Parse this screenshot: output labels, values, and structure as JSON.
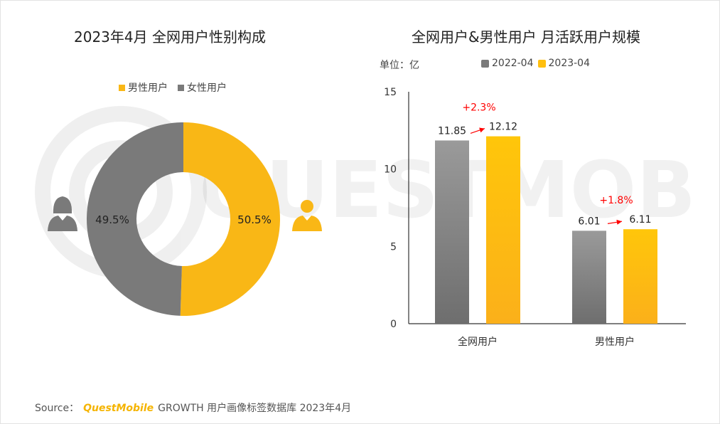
{
  "left_title": "2023年4月 全网用户性别构成",
  "right_title": "全网用户&男性用户 月活跃用户规模",
  "watermark_text": "QUESTMOBILE",
  "colors": {
    "male": "#f9b716",
    "female": "#7a7a7a",
    "bar_old": "#8a8a8a",
    "bar_new": "#ffbf0f",
    "change": "#ff0000"
  },
  "unit_label": "单位：亿",
  "source": {
    "prefix": "Source：",
    "brand": "QuestMobile",
    "text": "GROWTH 用户画像标签数据库 2023年4月"
  },
  "chart_data": [
    {
      "type": "pie",
      "variant": "donut",
      "title": "2023年4月 全网用户性别构成",
      "legend_position": "top",
      "slices": [
        {
          "name": "男性用户",
          "value": 50.5,
          "label": "50.5%",
          "color": "#f9b716",
          "icon": "male-user-icon"
        },
        {
          "name": "女性用户",
          "value": 49.5,
          "label": "49.5%",
          "color": "#7a7a7a",
          "icon": "female-user-icon"
        }
      ]
    },
    {
      "type": "bar",
      "title": "全网用户&男性用户 月活跃用户规模",
      "unit": "单位：亿",
      "categories": [
        "全网用户",
        "男性用户"
      ],
      "series": [
        {
          "name": "2022-04",
          "values": [
            11.85,
            6.01
          ],
          "labels": [
            "11.85",
            "6.01"
          ],
          "color": "#8a8a8a"
        },
        {
          "name": "2023-04",
          "values": [
            12.12,
            6.11
          ],
          "labels": [
            "12.12",
            "6.11"
          ],
          "color": "#ffbf0f"
        }
      ],
      "changes": [
        "+2.3%",
        "+1.8%"
      ],
      "ylim": [
        0,
        15
      ],
      "yticks": [
        "0",
        "5",
        "10",
        "15"
      ],
      "grid": false,
      "legend_position": "top"
    }
  ]
}
